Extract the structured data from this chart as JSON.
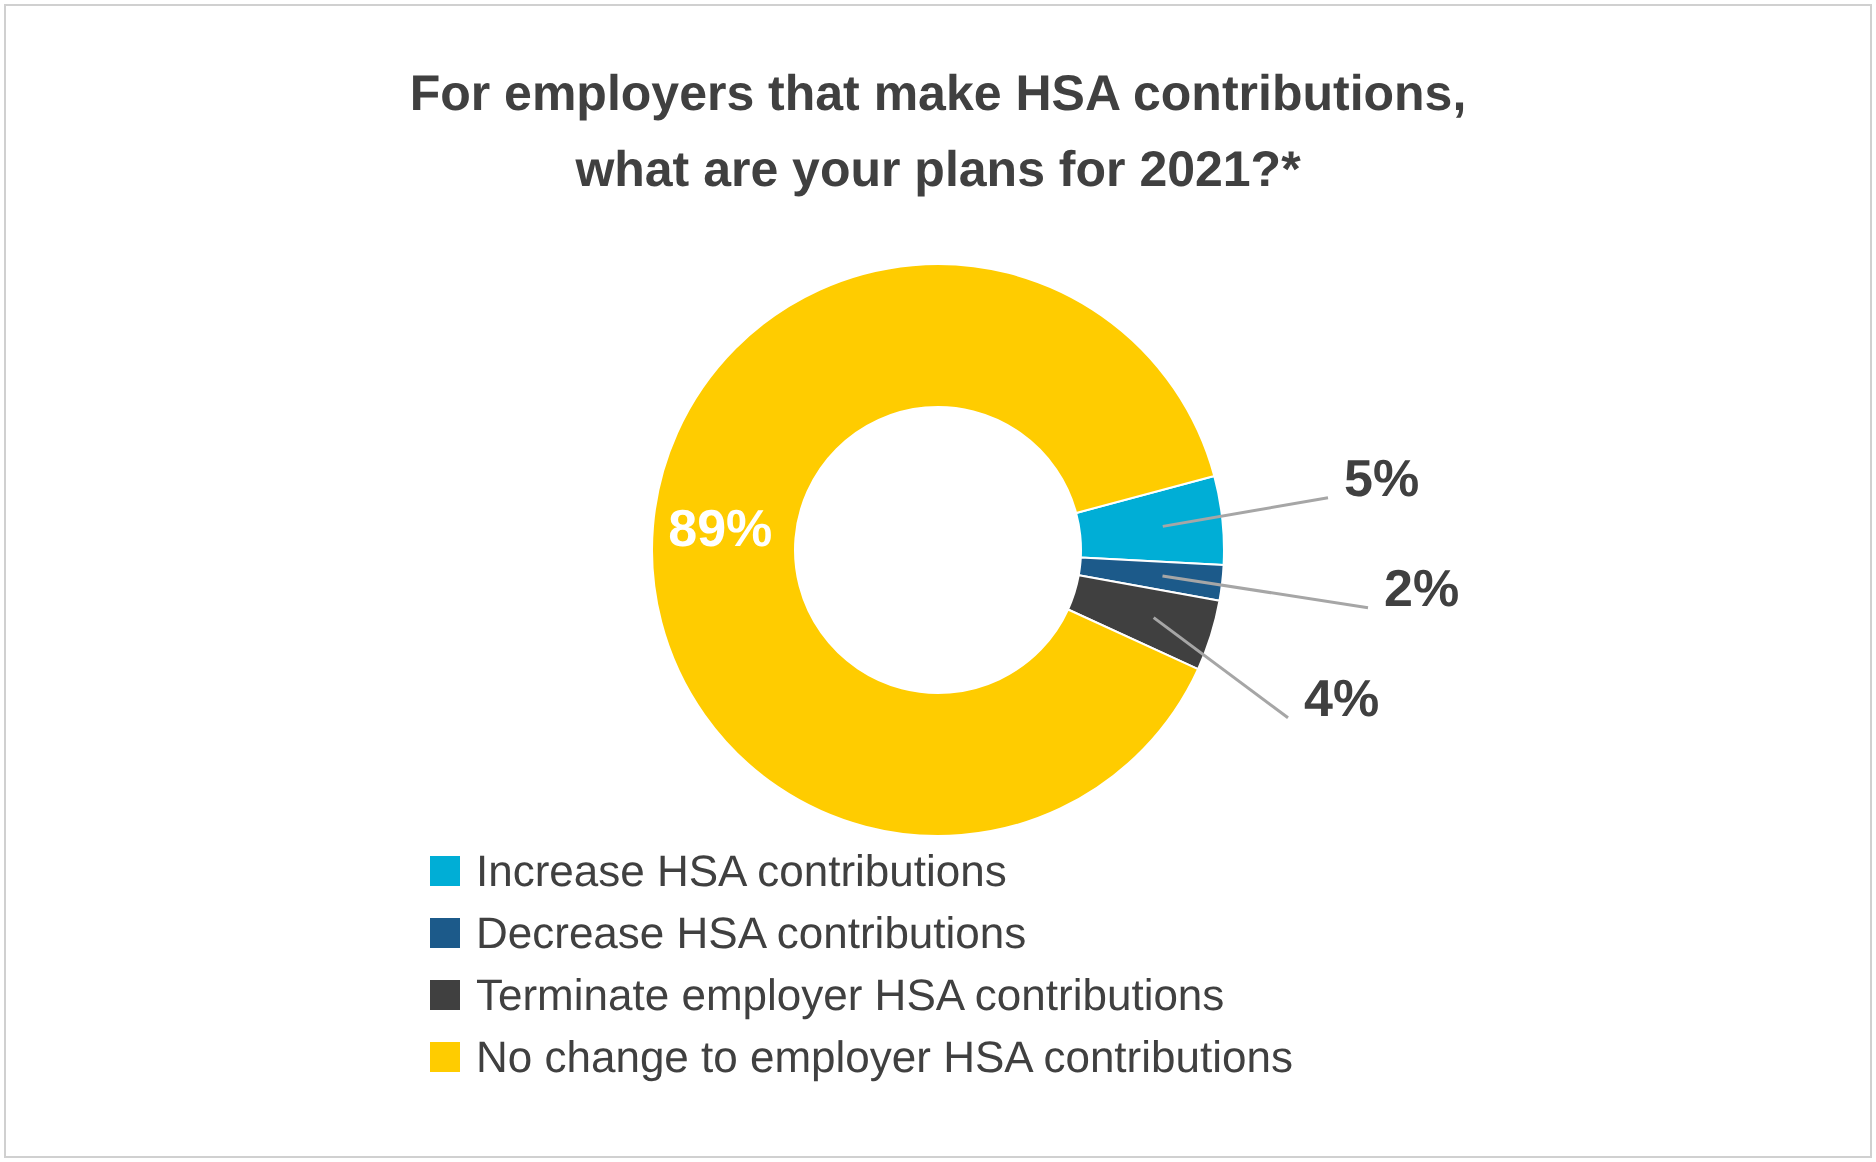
{
  "chart_data": {
    "type": "donut",
    "title": "For employers that make HSA contributions,\nwhat are your plans for 2021?*",
    "categories": [
      "Increase HSA contributions",
      "Decrease HSA contributions",
      "Terminate employer HSA contributions",
      "No change to employer HSA contributions"
    ],
    "values": [
      5,
      2,
      4,
      89
    ],
    "value_labels": [
      "5%",
      "2%",
      "4%",
      "89%"
    ],
    "colors": [
      "#00aed6",
      "#1c5a8a",
      "#404040",
      "#ffcc00"
    ],
    "legend": "bottom"
  }
}
